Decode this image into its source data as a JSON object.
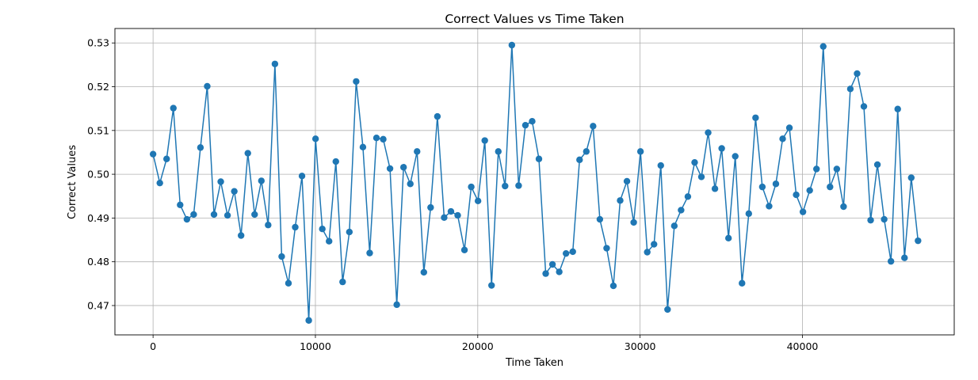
{
  "chart_data": {
    "type": "line",
    "title": "Correct Values vs Time Taken",
    "xlabel": "Time Taken",
    "ylabel": "Correct Values",
    "xlim": [
      -2350,
      49350
    ],
    "ylim": [
      0.4633,
      0.5333
    ],
    "xticks": [
      0,
      10000,
      20000,
      30000,
      40000
    ],
    "yticks": [
      0.47,
      0.48,
      0.49,
      0.5,
      0.51,
      0.52,
      0.53
    ],
    "xtick_labels": [
      "0",
      "10000",
      "20000",
      "30000",
      "40000"
    ],
    "ytick_labels": [
      "0.47",
      "0.48",
      "0.49",
      "0.50",
      "0.51",
      "0.52",
      "0.53"
    ],
    "grid": true,
    "marker": "circle",
    "color": "#1f77b4",
    "series": [
      {
        "x": [
          0,
          417,
          834,
          1251,
          1668,
          2085,
          2502,
          2919,
          3336,
          3753,
          4170,
          4587,
          5004,
          5421,
          5838,
          6255,
          6672,
          7089,
          7506,
          7923,
          8340,
          8757,
          9174,
          9591,
          10008,
          10425,
          10842,
          11259,
          11676,
          12093,
          12510,
          12927,
          13344,
          13761,
          14178,
          14595,
          15012,
          15429,
          15846,
          16263,
          16680,
          17097,
          17514,
          17931,
          18348,
          18765,
          19182,
          19599,
          20016,
          20433,
          20850,
          21267,
          21684,
          22101,
          22518,
          22935,
          23352,
          23769,
          24186,
          24603,
          25020,
          25437,
          25854,
          26271,
          26688,
          27105,
          27522,
          27939,
          28356,
          28773,
          29190,
          29607,
          30024,
          30441,
          30858,
          31275,
          31692,
          32109,
          32526,
          32943,
          33360,
          33777,
          34194,
          34611,
          35028,
          35445,
          35862,
          36279,
          36696,
          37113,
          37530,
          37947,
          38364,
          38781,
          39198,
          39615,
          40032,
          40449,
          40866,
          41283,
          41700,
          42117,
          42534,
          42951,
          43368,
          43785,
          44202,
          44619,
          45036,
          45453,
          45870,
          46287,
          46704,
          47121
        ],
        "y": [
          0.5046,
          0.498,
          0.5035,
          0.5151,
          0.493,
          0.4897,
          0.4908,
          0.5061,
          0.5201,
          0.4908,
          0.4983,
          0.4906,
          0.4961,
          0.486,
          0.5048,
          0.4908,
          0.4985,
          0.4884,
          0.5252,
          0.4812,
          0.4751,
          0.4879,
          0.4996,
          0.4666,
          0.5081,
          0.4875,
          0.4847,
          0.5029,
          0.4754,
          0.4868,
          0.5212,
          0.5062,
          0.482,
          0.5083,
          0.508,
          0.5013,
          0.4702,
          0.5016,
          0.4978,
          0.5052,
          0.4776,
          0.4924,
          0.5132,
          0.4901,
          0.4915,
          0.4906,
          0.4827,
          0.4971,
          0.4939,
          0.5077,
          0.4746,
          0.5052,
          0.4973,
          0.5295,
          0.4974,
          0.5112,
          0.5121,
          0.5035,
          0.4773,
          0.4794,
          0.4777,
          0.4819,
          0.4823,
          0.5033,
          0.5052,
          0.511,
          0.4897,
          0.4831,
          0.4745,
          0.494,
          0.4984,
          0.489,
          0.5052,
          0.4822,
          0.484,
          0.502,
          0.4691,
          0.4882,
          0.4918,
          0.4949,
          0.5027,
          0.4994,
          0.5095,
          0.4967,
          0.5059,
          0.4854,
          0.5041,
          0.4751,
          0.491,
          0.5129,
          0.4971,
          0.4927,
          0.4978,
          0.5081,
          0.5106,
          0.4953,
          0.4914,
          0.4963,
          0.5012,
          0.5292,
          0.4971,
          0.5012,
          0.4926,
          0.5195,
          0.523,
          0.5155,
          0.4895,
          0.5022,
          0.4897,
          0.4801,
          0.5149,
          0.4809,
          0.4992,
          0.4848
        ]
      }
    ]
  }
}
